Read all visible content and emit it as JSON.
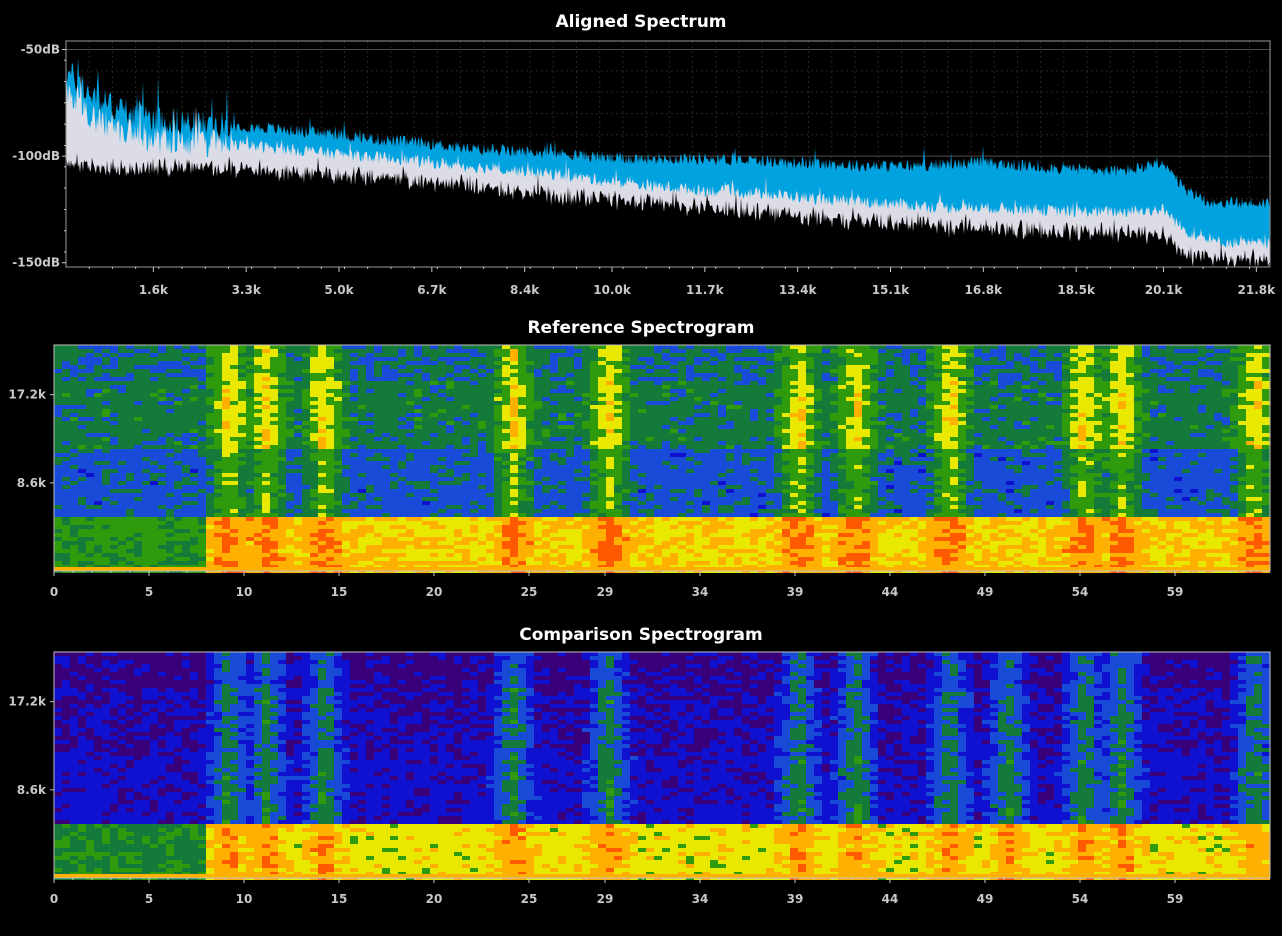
{
  "colors": {
    "background": "#000000",
    "reference_series": "#00a2e0",
    "comparison_series": "#dcdce6",
    "difference_floor": "#000000",
    "grid": "#4a4a4a",
    "text": "#ffffff",
    "tick_text": "#c8c8c8"
  },
  "chart_data": [
    {
      "type": "area",
      "title": "Aligned Spectrum",
      "xlabel": "",
      "ylabel": "",
      "y_unit": "dB",
      "ylim": [
        -152,
        -46
      ],
      "xlim": [
        0,
        22050
      ],
      "grid": true,
      "y_ticks": [
        "-50dB",
        "-100dB",
        "-150dB"
      ],
      "y_tick_values": [
        -50,
        -100,
        -150
      ],
      "x_ticks": [
        "1.6k",
        "3.3k",
        "5.0k",
        "6.7k",
        "8.4k",
        "10.0k",
        "11.7k",
        "13.4k",
        "15.1k",
        "16.8k",
        "18.5k",
        "20.1k",
        "21.8k"
      ],
      "x_tick_values": [
        1600,
        3300,
        5000,
        6700,
        8400,
        10000,
        11700,
        13400,
        15100,
        16800,
        18500,
        20100,
        21800
      ],
      "series": [
        {
          "color": "#00a2e0",
          "x": [
            0,
            500,
            1000,
            1600,
            2500,
            3300,
            4200,
            5000,
            6000,
            6700,
            7500,
            8400,
            9200,
            10000,
            10800,
            11700,
            12500,
            13400,
            14200,
            15100,
            16000,
            16800,
            17700,
            18500,
            19300,
            20100,
            20500,
            21000,
            21800,
            22050
          ],
          "values": [
            -60,
            -72,
            -78,
            -82,
            -85,
            -86,
            -88,
            -90,
            -93,
            -94,
            -97,
            -98,
            -99,
            -101,
            -101,
            -101,
            -102,
            -103,
            -104,
            -105,
            -104,
            -103,
            -105,
            -106,
            -107,
            -104,
            -116,
            -122,
            -122,
            -122
          ]
        },
        {
          "color": "#dcdce6",
          "x": [
            0,
            500,
            1000,
            1600,
            2500,
            3300,
            4200,
            5000,
            6000,
            6700,
            7500,
            8400,
            9200,
            10000,
            10800,
            11700,
            12500,
            13400,
            14200,
            15100,
            16000,
            16800,
            17700,
            18500,
            19300,
            20100,
            20500,
            21000,
            21800,
            22050
          ],
          "values": [
            -68,
            -82,
            -88,
            -92,
            -94,
            -95,
            -97,
            -99,
            -101,
            -103,
            -105,
            -107,
            -109,
            -112,
            -114,
            -116,
            -117,
            -119,
            -121,
            -122,
            -124,
            -124,
            -125,
            -126,
            -126,
            -125,
            -135,
            -140,
            -141,
            -141
          ]
        },
        {
          "color": "#000000",
          "x": [
            0,
            1000,
            2500,
            4200,
            6000,
            7500,
            9200,
            10800,
            12500,
            14200,
            16000,
            17700,
            19300,
            20100,
            20500,
            22050
          ],
          "values": [
            -102,
            -104,
            -103,
            -106,
            -109,
            -112,
            -117,
            -120,
            -124,
            -128,
            -131,
            -133,
            -134,
            -135,
            -145,
            -147
          ]
        }
      ]
    },
    {
      "type": "heatmap",
      "title": "Reference Spectrogram",
      "xlabel": "",
      "ylabel": "",
      "x_ticks": [
        "0",
        "5",
        "10",
        "15",
        "20",
        "25",
        "29",
        "34",
        "39",
        "44",
        "49",
        "54",
        "59"
      ],
      "y_ticks": [
        "17.2k",
        "8.6k"
      ],
      "y_tick_values": [
        17200,
        8600
      ],
      "ylim": [
        0,
        22050
      ],
      "xlim": [
        0,
        64
      ],
      "colormap": [
        "#3a007a",
        "#1010d0",
        "#1a4ad8",
        "#147a3a",
        "#2e9a0c",
        "#e8e800",
        "#ffb000",
        "#ff5a00"
      ],
      "low_band_level": 0.78,
      "mid_band_level": 0.3,
      "high_band_level": 0.42,
      "bursts_seconds": [
        9,
        11,
        14,
        24,
        29,
        39,
        42,
        47,
        54,
        56,
        63
      ]
    },
    {
      "type": "heatmap",
      "title": "Comparison Spectrogram",
      "xlabel": "",
      "ylabel": "",
      "x_ticks": [
        "0",
        "5",
        "10",
        "15",
        "20",
        "25",
        "29",
        "34",
        "39",
        "44",
        "49",
        "54",
        "59"
      ],
      "y_ticks": [
        "17.2k",
        "8.6k"
      ],
      "y_tick_values": [
        17200,
        8600
      ],
      "ylim": [
        0,
        22050
      ],
      "xlim": [
        0,
        64
      ],
      "colormap": [
        "#3a007a",
        "#1010d0",
        "#1a4ad8",
        "#147a3a",
        "#2e9a0c",
        "#e8e800",
        "#ffb000",
        "#ff5a00"
      ],
      "low_band_level": 0.72,
      "mid_band_level": 0.12,
      "high_band_level": 0.08,
      "bursts_seconds": [
        9,
        11,
        14,
        24,
        29,
        39,
        42,
        47,
        50,
        54,
        56,
        63
      ]
    }
  ]
}
